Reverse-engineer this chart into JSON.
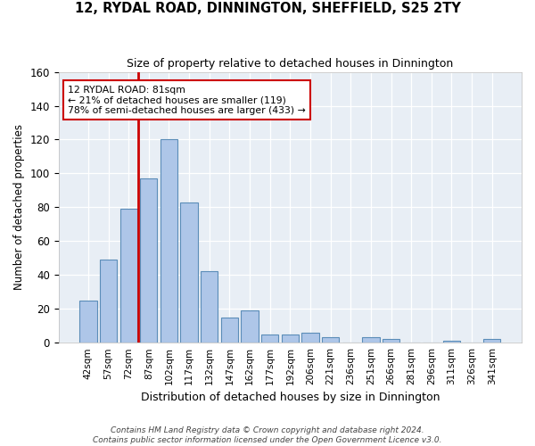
{
  "title": "12, RYDAL ROAD, DINNINGTON, SHEFFIELD, S25 2TY",
  "subtitle": "Size of property relative to detached houses in Dinnington",
  "xlabel": "Distribution of detached houses by size in Dinnington",
  "ylabel": "Number of detached properties",
  "bin_labels": [
    "42sqm",
    "57sqm",
    "72sqm",
    "87sqm",
    "102sqm",
    "117sqm",
    "132sqm",
    "147sqm",
    "162sqm",
    "177sqm",
    "192sqm",
    "206sqm",
    "221sqm",
    "236sqm",
    "251sqm",
    "266sqm",
    "281sqm",
    "296sqm",
    "311sqm",
    "326sqm",
    "341sqm"
  ],
  "bar_values": [
    25,
    49,
    79,
    97,
    120,
    83,
    42,
    15,
    19,
    5,
    5,
    6,
    3,
    0,
    3,
    2,
    0,
    0,
    1,
    0,
    2
  ],
  "bar_color": "#aec6e8",
  "bar_edge_color": "#5b8db8",
  "highlight_line_color": "#cc0000",
  "annotation_line1": "12 RYDAL ROAD: 81sqm",
  "annotation_line2": "← 21% of detached houses are smaller (119)",
  "annotation_line3": "78% of semi-detached houses are larger (433) →",
  "annotation_box_color": "#ffffff",
  "annotation_box_edge": "#cc0000",
  "ylim": [
    0,
    160
  ],
  "yticks": [
    0,
    20,
    40,
    60,
    80,
    100,
    120,
    140,
    160
  ],
  "bg_color": "#e8eef5",
  "footer_line1": "Contains HM Land Registry data © Crown copyright and database right 2024.",
  "footer_line2": "Contains public sector information licensed under the Open Government Licence v3.0."
}
